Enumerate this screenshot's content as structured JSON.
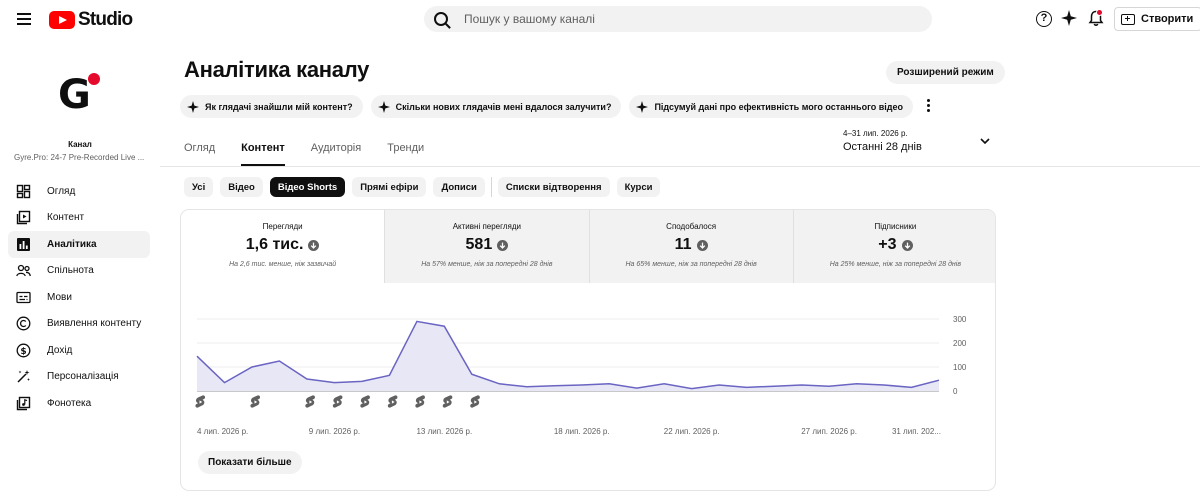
{
  "header": {
    "app_name": "Studio",
    "search_placeholder": "Пошук у вашому каналі",
    "create_label": "Створити"
  },
  "sidebar": {
    "channel_label": "Канал",
    "channel_name": "Gyre.Pro: 24-7 Pre-Recorded Live ...",
    "items": [
      {
        "label": "Огляд",
        "icon": "dashboard-icon"
      },
      {
        "label": "Контент",
        "icon": "content-icon"
      },
      {
        "label": "Аналітика",
        "icon": "analytics-icon",
        "active": true
      },
      {
        "label": "Спільнота",
        "icon": "community-icon"
      },
      {
        "label": "Мови",
        "icon": "subtitles-icon"
      },
      {
        "label": "Виявлення контенту",
        "icon": "copyright-icon"
      },
      {
        "label": "Дохід",
        "icon": "earn-icon"
      },
      {
        "label": "Персоналізація",
        "icon": "customization-icon"
      },
      {
        "label": "Фонотека",
        "icon": "audio-library-icon"
      }
    ]
  },
  "main": {
    "title": "Аналітика каналу",
    "advanced_label": "Розширений режим",
    "ai_prompts": [
      "Як глядачі знайшли мій контент?",
      "Скільки нових глядачів мені вдалося залучити?",
      "Підсумуй дані про ефективність мого останнього відео"
    ],
    "tabs": [
      "Огляд",
      "Контент",
      "Аудиторія",
      "Тренди"
    ],
    "active_tab": 1,
    "date_range_dates": "4–31 лип. 2026 р.",
    "date_range_label": "Останні 28 днів",
    "filters": [
      "Усі",
      "Відео",
      "Відео Shorts",
      "Прямі ефіри",
      "Дописи",
      "Списки відтворення",
      "Курси"
    ],
    "active_filter": 2,
    "metrics": [
      {
        "label": "Перегляди",
        "value": "1,6 тис.",
        "note": "На 2,6 тис. менше, ніж зазвичай"
      },
      {
        "label": "Активні перегляди",
        "value": "581",
        "note": "На 57% менше, ніж за попередні 28 днів"
      },
      {
        "label": "Сподобалося",
        "value": "11",
        "note": "На 65% менше, ніж за попередні 28 днів"
      },
      {
        "label": "Підписники",
        "value": "+3",
        "note": "На 25% менше, ніж за попередні 28 днів"
      }
    ],
    "show_more_label": "Показати більше"
  },
  "chart_data": {
    "type": "area",
    "series": [
      {
        "values": [
          145,
          35,
          100,
          125,
          50,
          35,
          40,
          65,
          290,
          270,
          70,
          30,
          18,
          22,
          25,
          30,
          12,
          30,
          10,
          25,
          15,
          20,
          25,
          20,
          30,
          25,
          15,
          45
        ]
      }
    ],
    "x_tick_labels": [
      "4 лип. 2026 р.",
      "9 лип. 2026 р.",
      "13 лип. 2026 р.",
      "18 лип. 2026 р.",
      "22 лип. 2026 р.",
      "27 лип. 2026 р.",
      "31 лип. 202..."
    ],
    "x_tick_index": [
      0,
      5,
      9,
      14,
      18,
      23,
      27
    ],
    "y_ticks": [
      0,
      100,
      200,
      300
    ],
    "ylim": [
      0,
      300
    ],
    "shorts_markers_index": [
      0,
      2,
      4,
      5,
      6,
      7,
      8,
      9,
      10
    ],
    "line_color": "#6a64c2",
    "fill_color": "#e8e7f6"
  }
}
